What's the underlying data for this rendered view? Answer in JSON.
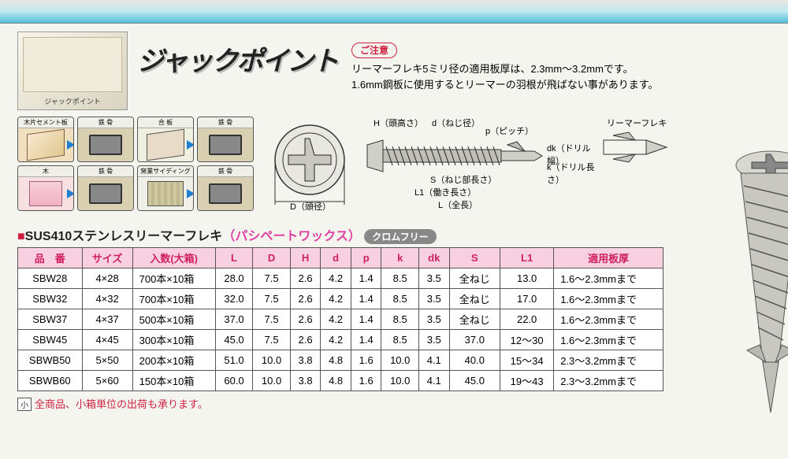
{
  "header": {
    "box_label": "ジャックポイント",
    "title": "ジャックポイント",
    "caution_label": "ご注意",
    "caution_line1": "リーマーフレキ5ミリ径の適用板厚は、2.3mm～3.2mmです。",
    "caution_line2": "1.6mm鋼板に使用するとリーマーの羽根が飛ばない事があります。"
  },
  "materials": {
    "row1": [
      "木片セメント板",
      "鉄 骨",
      "合 板",
      "鉄 骨"
    ],
    "row2": [
      "木",
      "鉄 骨",
      "窯業サイディング",
      "鉄 骨"
    ]
  },
  "diagram_labels": {
    "D": "D（頭径）",
    "H": "H（頭高さ）",
    "d": "d（ねじ径）",
    "p": "p（ピッチ）",
    "dk": "dk（ドリル幅）",
    "k": "k（ドリル長さ）",
    "S": "S（ねじ部長さ）",
    "L1": "L1（働き長さ）",
    "L": "L（全長）",
    "reamer": "リーマーフレキ"
  },
  "section": {
    "marker": "■",
    "title": "SUS410ステンレスリーマーフレキ",
    "parens": "（パシペートワックス）",
    "badge": "クロムフリー"
  },
  "table": {
    "headers": [
      "品　番",
      "サイズ",
      "入数(大箱)",
      "L",
      "D",
      "H",
      "d",
      "p",
      "k",
      "dk",
      "S",
      "L1",
      "適用板厚"
    ],
    "rows": [
      [
        "SBW28",
        "4×28",
        "700本×10箱",
        "28.0",
        "7.5",
        "2.6",
        "4.2",
        "1.4",
        "8.5",
        "3.5",
        "全ねじ",
        "13.0",
        "1.6～2.3mmまで"
      ],
      [
        "SBW32",
        "4×32",
        "700本×10箱",
        "32.0",
        "7.5",
        "2.6",
        "4.2",
        "1.4",
        "8.5",
        "3.5",
        "全ねじ",
        "17.0",
        "1.6～2.3mmまで"
      ],
      [
        "SBW37",
        "4×37",
        "500本×10箱",
        "37.0",
        "7.5",
        "2.6",
        "4.2",
        "1.4",
        "8.5",
        "3.5",
        "全ねじ",
        "22.0",
        "1.6～2.3mmまで"
      ],
      [
        "SBW45",
        "4×45",
        "300本×10箱",
        "45.0",
        "7.5",
        "2.6",
        "4.2",
        "1.4",
        "8.5",
        "3.5",
        "37.0",
        "12～30",
        "1.6～2.3mmまで"
      ],
      [
        "SBWB50",
        "5×50",
        "200本×10箱",
        "51.0",
        "10.0",
        "3.8",
        "4.8",
        "1.6",
        "10.0",
        "4.1",
        "40.0",
        "15～34",
        "2.3～3.2mmまで"
      ],
      [
        "SBWB60",
        "5×60",
        "150本×10箱",
        "60.0",
        "10.0",
        "3.8",
        "4.8",
        "1.6",
        "10.0",
        "4.1",
        "45.0",
        "19～43",
        "2.3～3.2mmまで"
      ]
    ]
  },
  "footer": {
    "badge": "小",
    "text": "全商品、小箱単位の出荷も承ります。"
  },
  "colors": {
    "header_pink": "#f8d0e0",
    "header_text": "#d02060",
    "accent_red": "#d02040",
    "accent_magenta": "#e040a0",
    "badge_gray": "#888888"
  }
}
